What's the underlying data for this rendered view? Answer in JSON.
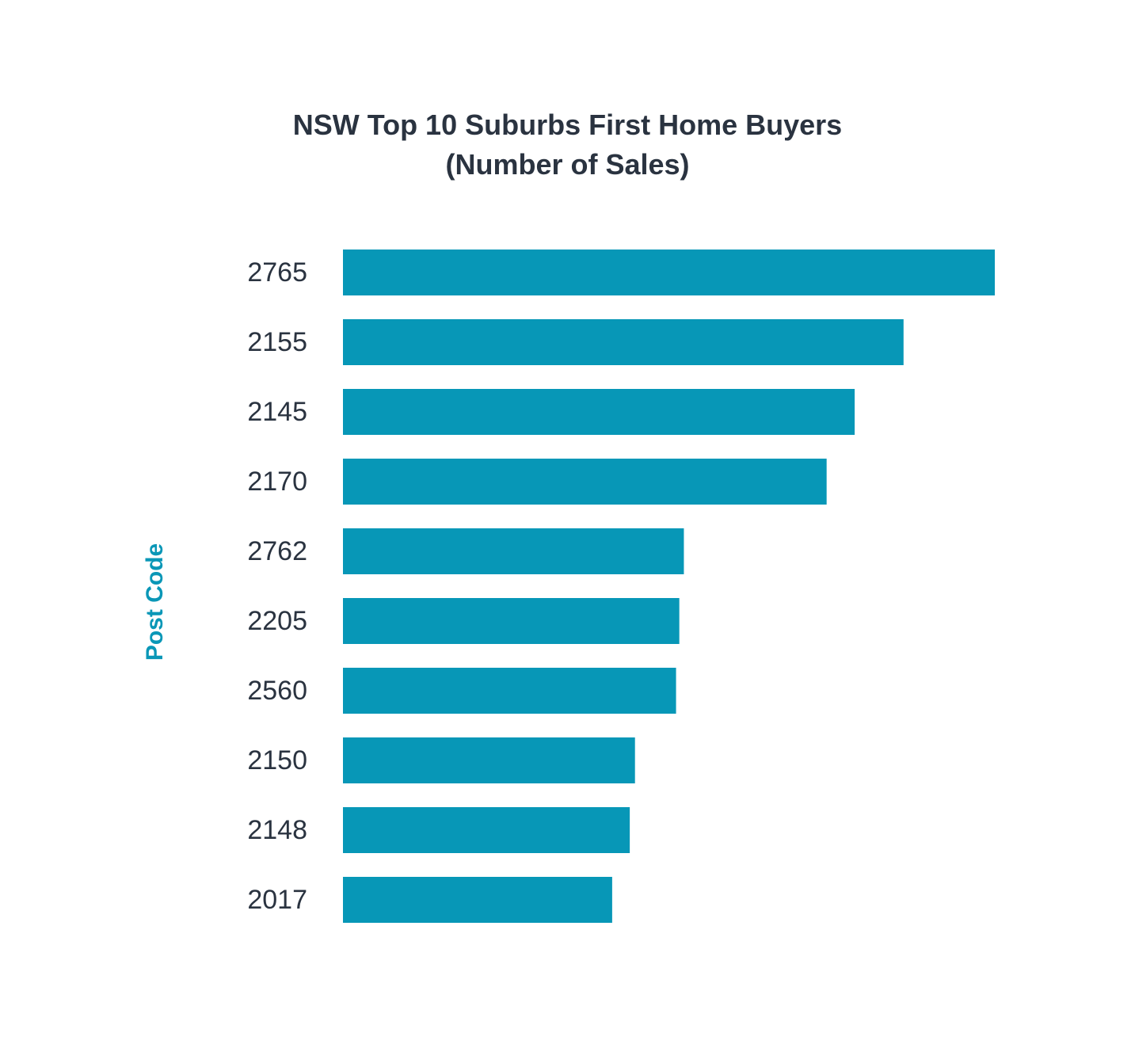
{
  "chart_data": {
    "type": "bar",
    "orientation": "horizontal",
    "title": [
      "NSW Top 10 Suburbs First Home Buyers",
      "(Number of Sales)"
    ],
    "ylabel": "Post Code",
    "xlabel": "",
    "categories": [
      "2765",
      "2155",
      "2145",
      "2170",
      "2762",
      "2205",
      "2560",
      "2150",
      "2148",
      "2017"
    ],
    "values": [
      100,
      86,
      78.5,
      74.2,
      52.3,
      51.6,
      51.1,
      44.8,
      44.0,
      41.3
    ],
    "xlim": [
      0,
      100
    ],
    "grid": false,
    "legend": "none",
    "bar_color": "#0797b7",
    "title_color": "#2a3340",
    "ylabel_color": "#0a97b7"
  }
}
